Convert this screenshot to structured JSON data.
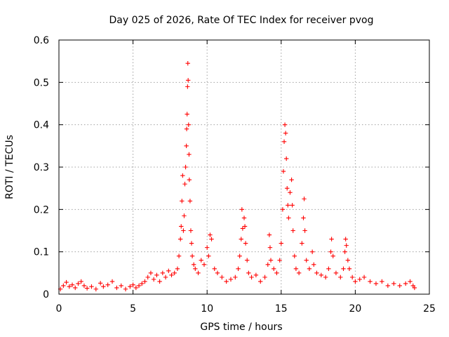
{
  "chart_data": {
    "type": "scatter",
    "title": "Day 025 of 2026, Rate Of TEC Index for receiver pvog",
    "xlabel": "GPS time / hours",
    "ylabel": "ROTI / TECUs",
    "xlim": [
      0,
      25
    ],
    "ylim": [
      0,
      0.6
    ],
    "x_ticks": [
      0,
      5,
      10,
      15,
      20,
      25
    ],
    "y_ticks": [
      0,
      0.1,
      0.2,
      0.3,
      0.4,
      0.5,
      0.6
    ],
    "x_tick_labels": [
      "0",
      "5",
      "10",
      "15",
      "20",
      "25"
    ],
    "y_tick_labels": [
      "0",
      "0.1",
      "0.2",
      "0.3",
      "0.4",
      "0.5",
      "0.6"
    ],
    "grid": true,
    "marker": "plus",
    "color": "#ff0000",
    "series": [
      {
        "name": "ROTI",
        "points": [
          [
            0.1,
            0.012
          ],
          [
            0.3,
            0.02
          ],
          [
            0.5,
            0.028
          ],
          [
            0.7,
            0.018
          ],
          [
            0.9,
            0.022
          ],
          [
            1.1,
            0.015
          ],
          [
            1.3,
            0.025
          ],
          [
            1.5,
            0.03
          ],
          [
            1.7,
            0.02
          ],
          [
            1.9,
            0.014
          ],
          [
            2.2,
            0.018
          ],
          [
            2.5,
            0.012
          ],
          [
            2.8,
            0.026
          ],
          [
            3.0,
            0.018
          ],
          [
            3.3,
            0.022
          ],
          [
            3.6,
            0.03
          ],
          [
            3.9,
            0.015
          ],
          [
            4.2,
            0.02
          ],
          [
            4.5,
            0.012
          ],
          [
            4.8,
            0.018
          ],
          [
            5.0,
            0.022
          ],
          [
            5.2,
            0.015
          ],
          [
            5.4,
            0.02
          ],
          [
            5.6,
            0.025
          ],
          [
            5.8,
            0.03
          ],
          [
            6.0,
            0.04
          ],
          [
            6.2,
            0.05
          ],
          [
            6.4,
            0.035
          ],
          [
            6.6,
            0.045
          ],
          [
            6.8,
            0.03
          ],
          [
            7.0,
            0.05
          ],
          [
            7.2,
            0.04
          ],
          [
            7.4,
            0.055
          ],
          [
            7.6,
            0.045
          ],
          [
            7.8,
            0.05
          ],
          [
            8.0,
            0.06
          ],
          [
            8.1,
            0.09
          ],
          [
            8.2,
            0.13
          ],
          [
            8.25,
            0.16
          ],
          [
            8.3,
            0.22
          ],
          [
            8.35,
            0.28
          ],
          [
            8.4,
            0.15
          ],
          [
            8.45,
            0.185
          ],
          [
            8.5,
            0.26
          ],
          [
            8.55,
            0.3
          ],
          [
            8.6,
            0.35
          ],
          [
            8.62,
            0.39
          ],
          [
            8.65,
            0.425
          ],
          [
            8.68,
            0.49
          ],
          [
            8.7,
            0.545
          ],
          [
            8.72,
            0.505
          ],
          [
            8.75,
            0.4
          ],
          [
            8.78,
            0.33
          ],
          [
            8.8,
            0.27
          ],
          [
            8.85,
            0.22
          ],
          [
            8.9,
            0.15
          ],
          [
            8.95,
            0.12
          ],
          [
            9.0,
            0.09
          ],
          [
            9.1,
            0.07
          ],
          [
            9.2,
            0.06
          ],
          [
            9.4,
            0.05
          ],
          [
            9.6,
            0.08
          ],
          [
            9.8,
            0.07
          ],
          [
            10.0,
            0.11
          ],
          [
            10.1,
            0.09
          ],
          [
            10.2,
            0.14
          ],
          [
            10.3,
            0.13
          ],
          [
            10.5,
            0.06
          ],
          [
            10.7,
            0.05
          ],
          [
            11.0,
            0.04
          ],
          [
            11.3,
            0.03
          ],
          [
            11.6,
            0.035
          ],
          [
            11.9,
            0.04
          ],
          [
            12.1,
            0.06
          ],
          [
            12.2,
            0.09
          ],
          [
            12.3,
            0.13
          ],
          [
            12.35,
            0.2
          ],
          [
            12.4,
            0.155
          ],
          [
            12.5,
            0.18
          ],
          [
            12.55,
            0.16
          ],
          [
            12.6,
            0.12
          ],
          [
            12.7,
            0.08
          ],
          [
            12.8,
            0.05
          ],
          [
            13.0,
            0.04
          ],
          [
            13.3,
            0.045
          ],
          [
            13.6,
            0.03
          ],
          [
            13.9,
            0.04
          ],
          [
            14.1,
            0.07
          ],
          [
            14.2,
            0.14
          ],
          [
            14.25,
            0.11
          ],
          [
            14.3,
            0.08
          ],
          [
            14.5,
            0.06
          ],
          [
            14.7,
            0.05
          ],
          [
            14.9,
            0.08
          ],
          [
            15.0,
            0.12
          ],
          [
            15.1,
            0.2
          ],
          [
            15.15,
            0.29
          ],
          [
            15.2,
            0.36
          ],
          [
            15.25,
            0.4
          ],
          [
            15.3,
            0.38
          ],
          [
            15.35,
            0.32
          ],
          [
            15.4,
            0.25
          ],
          [
            15.45,
            0.21
          ],
          [
            15.5,
            0.18
          ],
          [
            15.6,
            0.24
          ],
          [
            15.7,
            0.27
          ],
          [
            15.75,
            0.21
          ],
          [
            15.8,
            0.15
          ],
          [
            15.9,
            0.09
          ],
          [
            16.0,
            0.06
          ],
          [
            16.2,
            0.05
          ],
          [
            16.4,
            0.12
          ],
          [
            16.5,
            0.18
          ],
          [
            16.55,
            0.225
          ],
          [
            16.6,
            0.15
          ],
          [
            16.7,
            0.08
          ],
          [
            16.9,
            0.06
          ],
          [
            17.1,
            0.1
          ],
          [
            17.2,
            0.07
          ],
          [
            17.4,
            0.05
          ],
          [
            17.7,
            0.045
          ],
          [
            18.0,
            0.04
          ],
          [
            18.2,
            0.06
          ],
          [
            18.35,
            0.1
          ],
          [
            18.4,
            0.13
          ],
          [
            18.5,
            0.09
          ],
          [
            18.7,
            0.05
          ],
          [
            19.0,
            0.04
          ],
          [
            19.2,
            0.06
          ],
          [
            19.3,
            0.1
          ],
          [
            19.35,
            0.13
          ],
          [
            19.4,
            0.115
          ],
          [
            19.5,
            0.08
          ],
          [
            19.6,
            0.06
          ],
          [
            19.8,
            0.04
          ],
          [
            20.0,
            0.03
          ],
          [
            20.3,
            0.035
          ],
          [
            20.6,
            0.04
          ],
          [
            21.0,
            0.03
          ],
          [
            21.4,
            0.025
          ],
          [
            21.8,
            0.03
          ],
          [
            22.2,
            0.02
          ],
          [
            22.6,
            0.025
          ],
          [
            23.0,
            0.02
          ],
          [
            23.4,
            0.025
          ],
          [
            23.7,
            0.03
          ],
          [
            23.9,
            0.02
          ],
          [
            24.0,
            0.015
          ]
        ]
      }
    ]
  }
}
